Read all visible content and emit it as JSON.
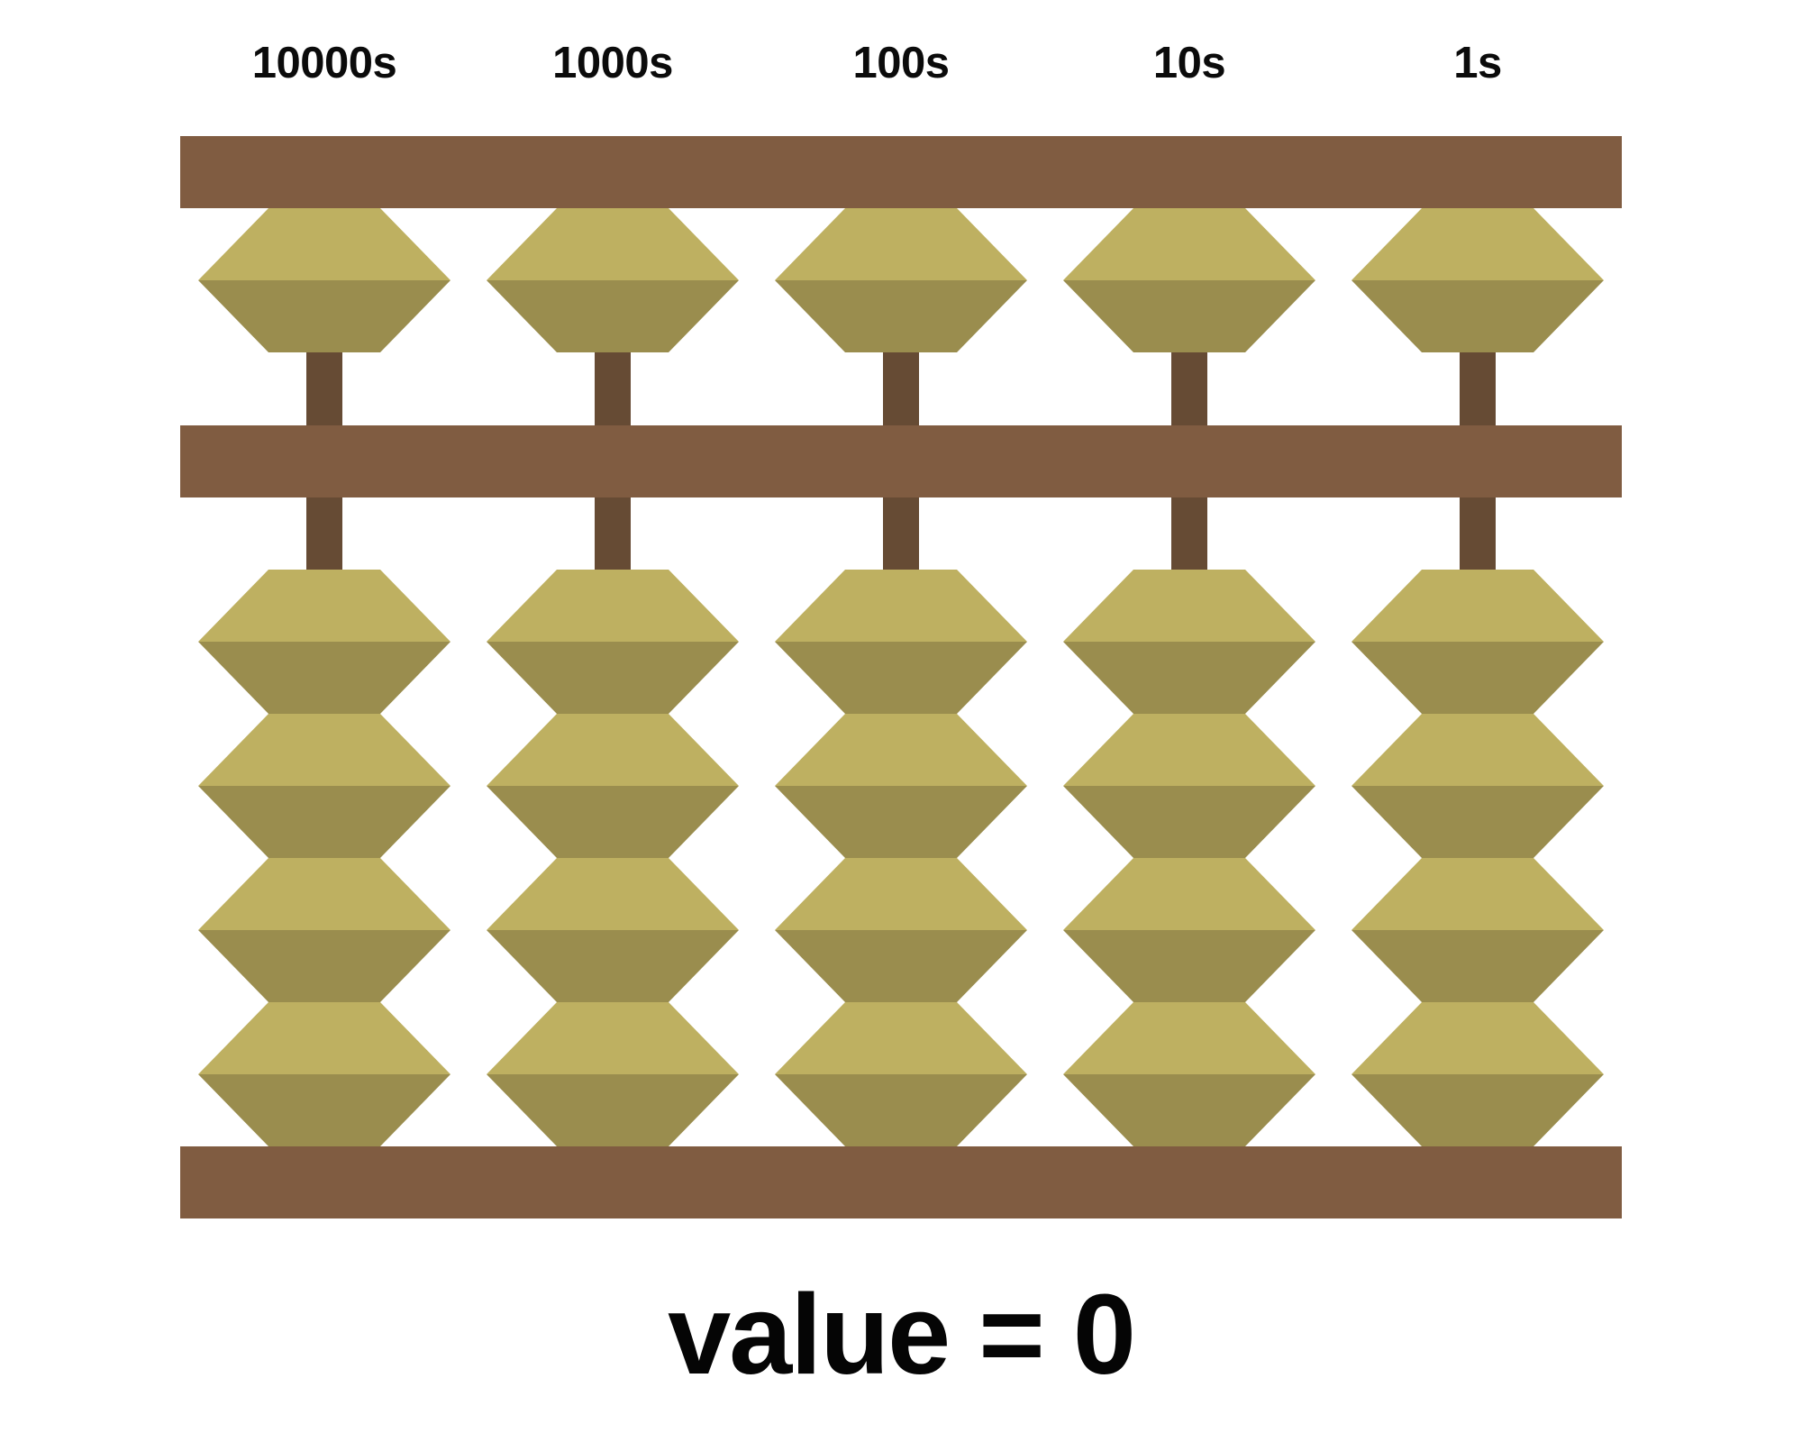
{
  "diagram": {
    "type": "abacus-soroban",
    "value_label": "value = 0",
    "value": 0,
    "columns": [
      {
        "label": "10000s",
        "place_value": 10000,
        "heaven_beads": 1,
        "earth_beads": 4,
        "heaven_active": false,
        "earth_active": 0,
        "digit": 0
      },
      {
        "label": "1000s",
        "place_value": 1000,
        "heaven_beads": 1,
        "earth_beads": 4,
        "heaven_active": false,
        "earth_active": 0,
        "digit": 0
      },
      {
        "label": "100s",
        "place_value": 100,
        "heaven_beads": 1,
        "earth_beads": 4,
        "heaven_active": false,
        "earth_active": 0,
        "digit": 0
      },
      {
        "label": "10s",
        "place_value": 10,
        "heaven_beads": 1,
        "earth_beads": 4,
        "heaven_active": false,
        "earth_active": 0,
        "digit": 0
      },
      {
        "label": "1s",
        "place_value": 1,
        "heaven_beads": 1,
        "earth_beads": 4,
        "heaven_active": false,
        "earth_active": 0,
        "digit": 0
      }
    ]
  },
  "colors": {
    "beam": "#805C41",
    "rod": "#664B34",
    "bead_light": "#BEB061",
    "bead_dark": "#9A8D4E",
    "text": "#050505",
    "background": "#FFFFFF"
  }
}
